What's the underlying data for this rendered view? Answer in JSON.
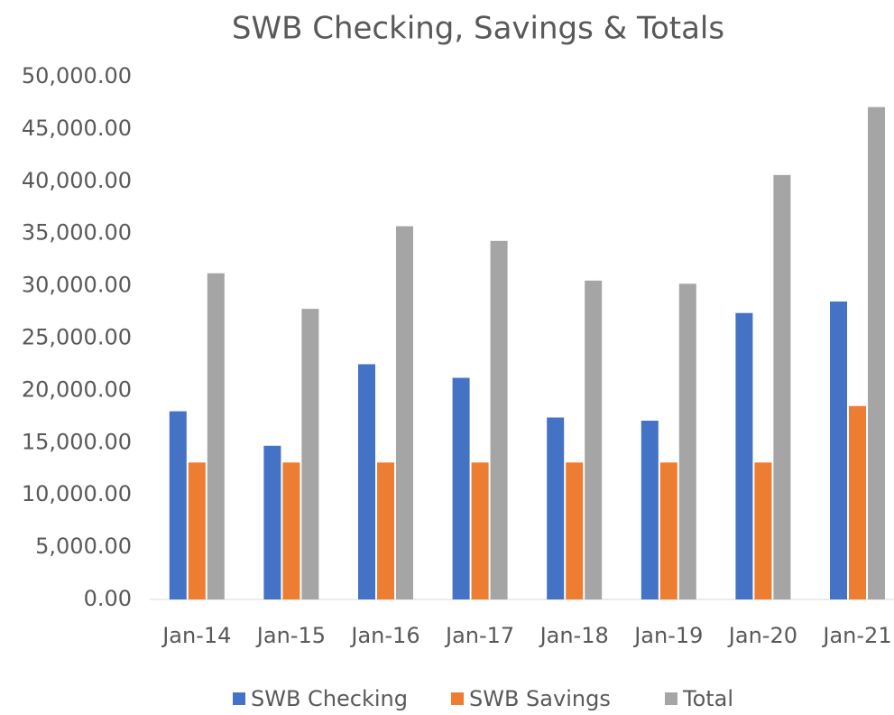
{
  "chart_data": {
    "type": "bar",
    "title": "SWB Checking, Savings & Totals",
    "categories": [
      "Jan-14",
      "Jan-15",
      "Jan-16",
      "Jan-17",
      "Jan-18",
      "Jan-19",
      "Jan-20",
      "Jan-21"
    ],
    "series": [
      {
        "name": "SWB Checking",
        "color": "#4472c4",
        "values": [
          18000,
          14700,
          22500,
          21200,
          17400,
          17100,
          27400,
          28500
        ]
      },
      {
        "name": "SWB Savings",
        "color": "#ed7d31",
        "values": [
          13100,
          13100,
          13100,
          13100,
          13100,
          13100,
          13100,
          18500
        ]
      },
      {
        "name": "Total",
        "color": "#a5a5a5",
        "values": [
          31200,
          27800,
          35700,
          34300,
          30500,
          30200,
          40600,
          47100
        ]
      }
    ],
    "ylim": [
      0,
      50000
    ],
    "yticks": [
      {
        "value": 0,
        "label": "0.00"
      },
      {
        "value": 5000,
        "label": "5,000.00"
      },
      {
        "value": 10000,
        "label": "10,000.00"
      },
      {
        "value": 15000,
        "label": "15,000.00"
      },
      {
        "value": 20000,
        "label": "20,000.00"
      },
      {
        "value": 25000,
        "label": "25,000.00"
      },
      {
        "value": 30000,
        "label": "30,000.00"
      },
      {
        "value": 35000,
        "label": "35,000.00"
      },
      {
        "value": 40000,
        "label": "40,000.00"
      },
      {
        "value": 45000,
        "label": "45,000.00"
      },
      {
        "value": 50000,
        "label": "50,000.00"
      }
    ],
    "grid": false,
    "legend": "bottom"
  }
}
